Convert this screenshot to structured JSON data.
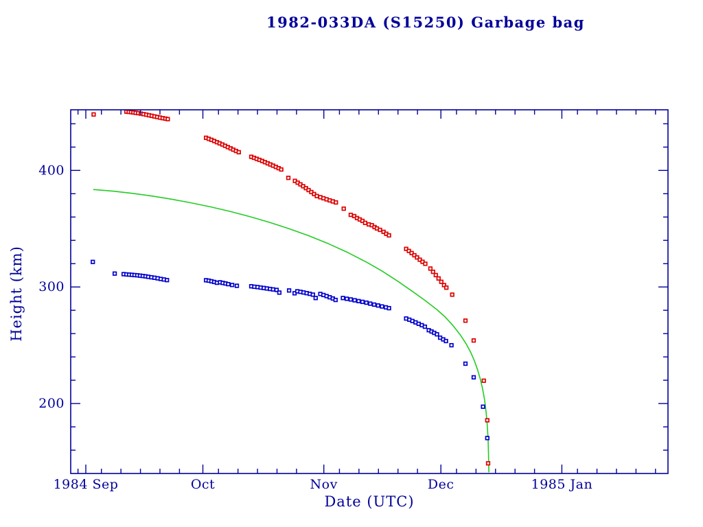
{
  "figure": {
    "background": "#ffffff",
    "text_color": "#000099"
  },
  "chart_data": {
    "type": "scatter",
    "title": "1982-033DA (S15250) Garbage bag",
    "xlabel": "Date (UTC)",
    "ylabel": "Height (km)",
    "x_unit": "days since 1984 Sep 1",
    "xlim": [
      -3.87,
      149.2
    ],
    "ylim": [
      140,
      452
    ],
    "grid": false,
    "legend": "none",
    "axis_color": "#000099",
    "y_major_ticks": [
      200,
      300,
      400
    ],
    "y_minor_ticks": [
      160,
      180,
      220,
      240,
      260,
      280,
      320,
      340,
      360,
      380,
      420,
      440
    ],
    "x_major_ticks": [
      {
        "day": 0,
        "label": "1984 Sep"
      },
      {
        "day": 30,
        "label": "Oct"
      },
      {
        "day": 61,
        "label": "Nov"
      },
      {
        "day": 91,
        "label": "Dec"
      },
      {
        "day": 122,
        "label": "1985 Jan"
      }
    ],
    "x_minor_tick_days": [
      -2,
      4,
      9,
      14,
      19,
      24,
      34,
      39,
      44,
      49,
      54,
      65,
      70,
      75,
      80,
      85,
      95,
      100,
      105,
      110,
      115,
      126,
      131,
      136,
      141,
      146
    ],
    "series": [
      {
        "name": "mean-height-curve",
        "kind": "line",
        "color": "#22cc22",
        "points": [
          [
            1.9,
            383.6
          ],
          [
            7,
            382.2
          ],
          [
            12,
            380.3
          ],
          [
            17,
            378
          ],
          [
            22,
            375.3
          ],
          [
            27,
            372.2
          ],
          [
            32,
            368.7
          ],
          [
            37,
            364.8
          ],
          [
            42,
            360.4
          ],
          [
            47,
            355.5
          ],
          [
            52,
            350.1
          ],
          [
            57,
            344.1
          ],
          [
            62,
            337.4
          ],
          [
            67,
            329.8
          ],
          [
            72,
            321.2
          ],
          [
            76,
            313.5
          ],
          [
            80,
            304.8
          ],
          [
            84,
            295.5
          ],
          [
            87,
            288.3
          ],
          [
            90,
            280.5
          ],
          [
            92,
            274.5
          ],
          [
            94,
            267.3
          ],
          [
            96,
            258.8
          ],
          [
            97.5,
            251
          ],
          [
            98.7,
            243.5
          ],
          [
            99.6,
            236.5
          ],
          [
            100.4,
            229
          ],
          [
            101.1,
            221
          ],
          [
            101.7,
            212.5
          ],
          [
            102.2,
            203
          ],
          [
            102.6,
            192.5
          ],
          [
            102.9,
            181
          ],
          [
            103.1,
            169
          ],
          [
            103.2,
            156
          ],
          [
            103.3,
            141
          ]
        ]
      },
      {
        "name": "apogee-height-points",
        "kind": "scatter",
        "marker": "open-square",
        "color": "#dd0000",
        "points": [
          [
            2,
            448
          ],
          [
            10.4,
            450.4
          ],
          [
            11,
            450.2
          ],
          [
            11.6,
            450
          ],
          [
            12.2,
            449.7
          ],
          [
            12.8,
            449.4
          ],
          [
            13.4,
            449.1
          ],
          [
            14.1,
            448.7
          ],
          [
            14.8,
            448.3
          ],
          [
            15.5,
            447.8
          ],
          [
            16.2,
            447.3
          ],
          [
            16.9,
            446.8
          ],
          [
            17.6,
            446.3
          ],
          [
            18.3,
            445.8
          ],
          [
            19,
            445.3
          ],
          [
            19.7,
            444.8
          ],
          [
            20.4,
            444.4
          ],
          [
            21,
            444
          ],
          [
            30.8,
            428
          ],
          [
            31.5,
            427.1
          ],
          [
            32.2,
            426.2
          ],
          [
            32.9,
            425.2
          ],
          [
            33.6,
            424.2
          ],
          [
            34.3,
            423.2
          ],
          [
            35,
            422.2
          ],
          [
            35.7,
            421.1
          ],
          [
            36.4,
            420
          ],
          [
            37.1,
            418.9
          ],
          [
            37.8,
            417.8
          ],
          [
            38.5,
            416.7
          ],
          [
            39.2,
            415.6
          ],
          [
            42.4,
            411.7
          ],
          [
            43.1,
            410.8
          ],
          [
            43.8,
            409.9
          ],
          [
            44.5,
            409
          ],
          [
            45.2,
            408.1
          ],
          [
            45.9,
            407.1
          ],
          [
            46.6,
            406.1
          ],
          [
            47.3,
            405.1
          ],
          [
            48,
            404.1
          ],
          [
            48.7,
            403
          ],
          [
            49.4,
            401.9
          ],
          [
            50.1,
            400.8
          ],
          [
            51.9,
            393.6
          ],
          [
            53.6,
            391
          ],
          [
            54.3,
            389.5
          ],
          [
            55,
            388
          ],
          [
            55.7,
            386.4
          ],
          [
            56.4,
            384.8
          ],
          [
            57.1,
            383.1
          ],
          [
            57.8,
            381.4
          ],
          [
            58.5,
            379.7
          ],
          [
            59.2,
            378
          ],
          [
            60.1,
            377
          ],
          [
            60.9,
            376.1
          ],
          [
            61.7,
            375.2
          ],
          [
            62.5,
            374.3
          ],
          [
            63.3,
            373.4
          ],
          [
            64.1,
            372.5
          ],
          [
            66.1,
            367.2
          ],
          [
            67.9,
            361.9
          ],
          [
            68.8,
            360.8
          ],
          [
            69.5,
            359.1
          ],
          [
            70.2,
            357.9
          ],
          [
            70.9,
            356.7
          ],
          [
            71.6,
            355
          ],
          [
            72.5,
            353.7
          ],
          [
            73.3,
            353
          ],
          [
            74,
            351.4
          ],
          [
            74.6,
            350.2
          ],
          [
            75.4,
            349
          ],
          [
            76.3,
            347.3
          ],
          [
            77,
            345.6
          ],
          [
            77.7,
            344.3
          ],
          [
            82.1,
            332.7
          ],
          [
            82.8,
            330.9
          ],
          [
            83.5,
            329.1
          ],
          [
            84.2,
            327.2
          ],
          [
            84.9,
            325.3
          ],
          [
            85.6,
            323.4
          ],
          [
            86.3,
            321.6
          ],
          [
            87,
            319.9
          ],
          [
            88.3,
            315.8
          ],
          [
            89,
            313
          ],
          [
            89.7,
            310.2
          ],
          [
            90.4,
            307.3
          ],
          [
            91.1,
            304.4
          ],
          [
            91.8,
            301.6
          ],
          [
            92.4,
            299.4
          ],
          [
            93.9,
            293.4
          ],
          [
            97.3,
            271.1
          ],
          [
            99.4,
            254.1
          ],
          [
            102,
            219.6
          ],
          [
            102.9,
            185.6
          ],
          [
            103.1,
            148.7
          ]
        ]
      },
      {
        "name": "perigee-height-points",
        "kind": "scatter",
        "marker": "open-square",
        "color": "#0000cc",
        "points": [
          [
            1.8,
            321.5
          ],
          [
            7.4,
            311.5
          ],
          [
            9.7,
            311
          ],
          [
            10.4,
            310.8
          ],
          [
            11.1,
            310.6
          ],
          [
            11.8,
            310.4
          ],
          [
            12.5,
            310.2
          ],
          [
            13.2,
            310
          ],
          [
            13.9,
            309.7
          ],
          [
            14.6,
            309.4
          ],
          [
            15.3,
            309.1
          ],
          [
            16,
            308.7
          ],
          [
            16.8,
            308.3
          ],
          [
            17.6,
            307.9
          ],
          [
            18.4,
            307.4
          ],
          [
            19.2,
            306.9
          ],
          [
            20,
            306.4
          ],
          [
            20.8,
            305.9
          ],
          [
            30.8,
            305.8
          ],
          [
            31.5,
            305.4
          ],
          [
            32.2,
            304.9
          ],
          [
            32.9,
            304.3
          ],
          [
            33.6,
            303.6
          ],
          [
            34.4,
            304
          ],
          [
            35.1,
            303.5
          ],
          [
            35.8,
            303
          ],
          [
            36.5,
            302.4
          ],
          [
            37.5,
            301.7
          ],
          [
            38.7,
            301
          ],
          [
            42.4,
            300.6
          ],
          [
            43.2,
            300.2
          ],
          [
            44,
            299.9
          ],
          [
            44.8,
            299.5
          ],
          [
            45.6,
            299.1
          ],
          [
            46.4,
            298.7
          ],
          [
            47.2,
            298.3
          ],
          [
            48,
            297.9
          ],
          [
            48.9,
            297.5
          ],
          [
            49.6,
            295.2
          ],
          [
            52.1,
            297
          ],
          [
            53.5,
            294.6
          ],
          [
            54.2,
            296.3
          ],
          [
            55,
            295.8
          ],
          [
            55.8,
            295.3
          ],
          [
            56.6,
            294.7
          ],
          [
            57.4,
            294.1
          ],
          [
            58.2,
            293.4
          ],
          [
            58.9,
            290.5
          ],
          [
            60.1,
            294
          ],
          [
            60.9,
            293.1
          ],
          [
            61.7,
            292.2
          ],
          [
            62.5,
            291.2
          ],
          [
            63.3,
            290.1
          ],
          [
            64,
            288.9
          ],
          [
            65.9,
            290.5
          ],
          [
            66.9,
            289.9
          ],
          [
            67.9,
            289.3
          ],
          [
            68.9,
            288.6
          ],
          [
            69.9,
            287.9
          ],
          [
            70.9,
            287.2
          ],
          [
            71.9,
            286.5
          ],
          [
            72.9,
            285.7
          ],
          [
            73.9,
            284.9
          ],
          [
            74.9,
            284.1
          ],
          [
            75.9,
            283.3
          ],
          [
            76.9,
            282.5
          ],
          [
            77.7,
            281.8
          ],
          [
            82.1,
            272.9
          ],
          [
            82.9,
            271.9
          ],
          [
            83.7,
            270.8
          ],
          [
            84.5,
            269.6
          ],
          [
            85.3,
            268.4
          ],
          [
            86.1,
            267.2
          ],
          [
            86.9,
            265.9
          ],
          [
            87.9,
            262.9
          ],
          [
            88.6,
            261.8
          ],
          [
            89.3,
            260.6
          ],
          [
            90,
            259.4
          ],
          [
            90.8,
            256.5
          ],
          [
            91.6,
            255
          ],
          [
            92.3,
            253.6
          ],
          [
            93.7,
            250
          ],
          [
            97.3,
            234.2
          ],
          [
            99.4,
            222.5
          ],
          [
            101.8,
            197.3
          ],
          [
            102.9,
            170.4
          ]
        ]
      }
    ]
  }
}
